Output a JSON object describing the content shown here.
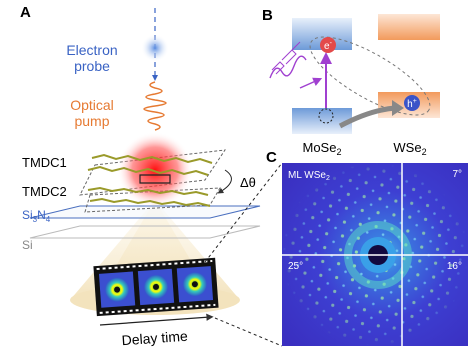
{
  "panels": {
    "a": {
      "label": "A",
      "probe": [
        "Electron",
        "probe"
      ],
      "pump": [
        "Optical",
        "pump"
      ],
      "layer1": "TMDC1",
      "layer2": "TMDC2",
      "twist": "Δθ",
      "substrate": {
        "base": "Si",
        "sub1": "3",
        "mid": "N",
        "sub2": "4"
      },
      "si": "Si",
      "film_caption": "Delay time"
    },
    "b": {
      "label": "B",
      "left": {
        "base": "MoSe",
        "sub": "2"
      },
      "right": {
        "base": "WSe",
        "sub": "2"
      },
      "electron": {
        "base": "e",
        "sup": "-"
      },
      "hole": {
        "base": "h",
        "sup": "+"
      }
    },
    "c": {
      "label": "C",
      "sample": {
        "base": "ML WSe",
        "sub": "2"
      },
      "angles": [
        "7°",
        "25°",
        "16°"
      ]
    }
  }
}
